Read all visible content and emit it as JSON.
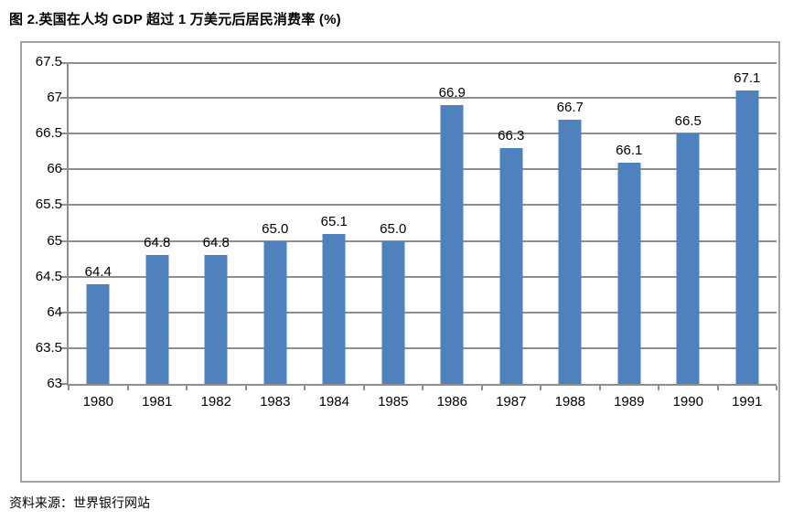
{
  "page": {
    "source_note": "资料来源：世界银行网站"
  },
  "colors": {
    "bar": "#4F81BD",
    "gridline": "#8E8E8E",
    "axis": "#8E8E8E",
    "frame_border": "#A3A3A3",
    "text": "#000000",
    "background": "#FFFFFF"
  },
  "chart_data": {
    "type": "bar",
    "title": "图 2.英国在人均 GDP 超过 1 万美元后居民消费率 (%)",
    "categories": [
      "1980",
      "1981",
      "1982",
      "1983",
      "1984",
      "1985",
      "1986",
      "1987",
      "1988",
      "1989",
      "1990",
      "1991"
    ],
    "values": [
      64.4,
      64.8,
      64.8,
      65.0,
      65.1,
      65.0,
      66.9,
      66.3,
      66.7,
      66.1,
      66.5,
      67.1
    ],
    "value_labels": [
      "64.4",
      "64.8",
      "64.8",
      "65.0",
      "65.1",
      "65.0",
      "66.9",
      "66.3",
      "66.7",
      "66.1",
      "66.5",
      "67.1"
    ],
    "xlabel": "",
    "ylabel": "",
    "ylim": [
      63,
      67.5
    ],
    "ytick_step": 0.5,
    "ytick_labels": [
      "67.5",
      "67",
      "66.5",
      "66",
      "65.5",
      "65",
      "64.5",
      "64",
      "63.5",
      "63"
    ],
    "grid": true,
    "legend": false,
    "data_label_position": "outside-end",
    "source": "资料来源：世界银行网站"
  }
}
